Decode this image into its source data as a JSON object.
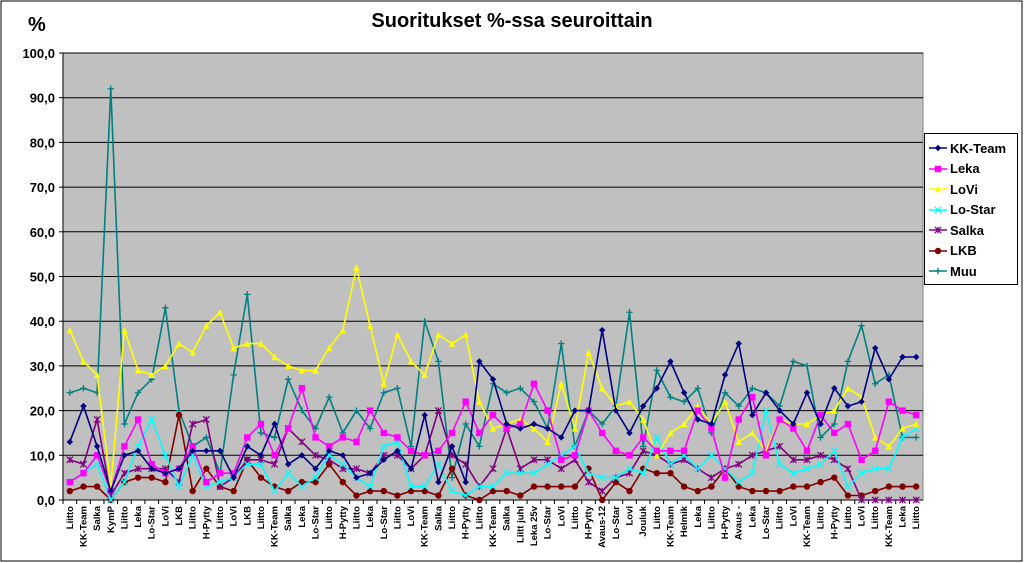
{
  "chart_data": {
    "type": "line",
    "title": "Suoritukset %-ssa seuroittain",
    "ylabel": "%",
    "xlabel": "",
    "ylim": [
      0,
      100
    ],
    "yticks": [
      "0,0",
      "10,0",
      "20,0",
      "30,0",
      "40,0",
      "50,0",
      "60,0",
      "70,0",
      "80,0",
      "90,0",
      "100,0"
    ],
    "grid": true,
    "legend_position": "right",
    "plot_background": "#c0c0c0",
    "categories": [
      "Liitto",
      "KK-Team",
      "Salka",
      "KymP",
      "Liitto",
      "Leka",
      "Lo-Star",
      "LoVi",
      "LKB",
      "Liitto",
      "H-Pytty",
      "Liitto",
      "LoVi",
      "LKB",
      "Liitto",
      "KK-Team",
      "Salka",
      "Leka",
      "Lo-Star",
      "Liitto",
      "H-Pytty",
      "Liitto",
      "Leka",
      "Lo-Star",
      "Liitto",
      "LoVi",
      "KK-Team",
      "Salka",
      "Liitto",
      "H-Pytty",
      "Liitto",
      "KK-Team",
      "Salka",
      "Liitt juhl",
      "Leka 25v",
      "Lo-Star",
      "LoVi",
      "Liitto",
      "H-Pytty",
      "Avaus-12",
      "Lo-Star",
      "Lovi",
      "Jouluk",
      "Liitto",
      "KK-Team",
      "Helmik",
      "Leka",
      "Liitto",
      "H-Pytty",
      "Avaus -",
      "Leka",
      "Lo-Star",
      "Liitto",
      "LoVi",
      "KK-Team",
      "Liitto",
      "H-Pytty",
      "Liitto",
      "LoVi",
      "Liitto",
      "KK-Team",
      "Leka",
      "Liitto"
    ],
    "series": [
      {
        "name": "KK-Team",
        "color": "#000080",
        "marker": "diamond",
        "values": [
          13,
          21,
          12,
          2,
          10,
          11,
          7,
          6,
          7,
          11,
          11,
          11,
          5,
          12,
          10,
          17,
          8,
          10,
          7,
          11,
          10,
          5,
          6,
          9,
          11,
          7,
          19,
          4,
          12,
          4,
          31,
          27,
          17,
          16,
          17,
          16,
          14,
          20,
          20,
          38,
          20,
          15,
          21,
          25,
          31,
          24,
          18,
          17,
          28,
          35,
          19,
          24,
          20,
          17,
          24,
          17,
          25,
          21,
          22,
          34,
          27,
          32,
          32
        ]
      },
      {
        "name": "Leka",
        "color": "#ff00ff",
        "marker": "square",
        "values": [
          4,
          6,
          10,
          2,
          12,
          18,
          8,
          6,
          7,
          12,
          4,
          6,
          6,
          14,
          17,
          10,
          16,
          25,
          14,
          12,
          14,
          13,
          20,
          15,
          14,
          11,
          10,
          11,
          15,
          22,
          15,
          19,
          16,
          17,
          26,
          20,
          9,
          10,
          20,
          15,
          11,
          10,
          14,
          11,
          11,
          11,
          20,
          16,
          5,
          18,
          23,
          10,
          18,
          16,
          11,
          19,
          15,
          17,
          9,
          11,
          22,
          20,
          19
        ]
      },
      {
        "name": "LoVi",
        "color": "#ffff00",
        "marker": "triangle",
        "values": [
          38,
          31,
          28,
          3,
          38,
          29,
          28,
          30,
          35,
          33,
          39,
          42,
          34,
          35,
          35,
          32,
          30,
          29,
          29,
          34,
          38,
          52,
          39,
          26,
          37,
          31,
          28,
          37,
          35,
          37,
          22,
          16,
          17,
          18,
          16,
          13,
          26,
          16,
          33,
          25,
          21,
          22,
          18,
          10,
          15,
          17,
          21,
          17,
          22,
          13,
          15,
          11,
          18,
          17,
          17,
          19,
          20,
          25,
          23,
          14,
          12,
          16,
          17
        ]
      },
      {
        "name": "Lo-Star",
        "color": "#00ffff",
        "marker": "x",
        "values": [
          4,
          6,
          8,
          0,
          4,
          12,
          18,
          10,
          3,
          10,
          3,
          4,
          5,
          8,
          8,
          2,
          6,
          3,
          5,
          10,
          8,
          5,
          3,
          12,
          13,
          3,
          3,
          8,
          2,
          1,
          3,
          3,
          6,
          6,
          6,
          8,
          10,
          12,
          6,
          5,
          5,
          7,
          6,
          14,
          8,
          10,
          7,
          10,
          7,
          4,
          6,
          20,
          8,
          6,
          7,
          8,
          11,
          3,
          6,
          7,
          7,
          14,
          16
        ]
      },
      {
        "name": "Salka",
        "color": "#800080",
        "marker": "star",
        "values": [
          9,
          8,
          18,
          1,
          6,
          7,
          7,
          7,
          4,
          17,
          18,
          3,
          5,
          9,
          9,
          8,
          16,
          13,
          10,
          9,
          7,
          7,
          6,
          10,
          10,
          7,
          10,
          20,
          10,
          8,
          3,
          7,
          16,
          7,
          9,
          9,
          7,
          9,
          4,
          2,
          5,
          6,
          11,
          10,
          8,
          9,
          7,
          5,
          7,
          8,
          10,
          11,
          12,
          9,
          9,
          10,
          9,
          7,
          0,
          0,
          0,
          0,
          0
        ]
      },
      {
        "name": "LKB",
        "color": "#800000",
        "marker": "circle",
        "values": [
          2,
          3,
          3,
          0,
          4,
          5,
          5,
          4,
          19,
          2,
          7,
          3,
          2,
          9,
          5,
          3,
          2,
          4,
          4,
          8,
          4,
          1,
          2,
          2,
          1,
          2,
          2,
          1,
          7,
          1,
          0,
          2,
          2,
          1,
          3,
          3,
          3,
          3,
          7,
          0,
          4,
          2,
          7,
          6,
          6,
          3,
          2,
          3,
          7,
          3,
          2,
          2,
          2,
          3,
          3,
          4,
          5,
          1,
          1,
          2,
          3,
          3,
          3
        ]
      },
      {
        "name": "Muu",
        "color": "#008080",
        "marker": "plus",
        "values": [
          24,
          25,
          24,
          92,
          17,
          24,
          27,
          43,
          20,
          12,
          14,
          6,
          28,
          46,
          15,
          14,
          27,
          20,
          16,
          23,
          15,
          20,
          16,
          24,
          25,
          12,
          40,
          31,
          5,
          17,
          12,
          26,
          24,
          25,
          22,
          16,
          35,
          12,
          20,
          17,
          21,
          42,
          12,
          29,
          23,
          22,
          25,
          15,
          24,
          21,
          25,
          24,
          21,
          31,
          30,
          14,
          17,
          31,
          39,
          26,
          28,
          14,
          14
        ]
      }
    ]
  }
}
